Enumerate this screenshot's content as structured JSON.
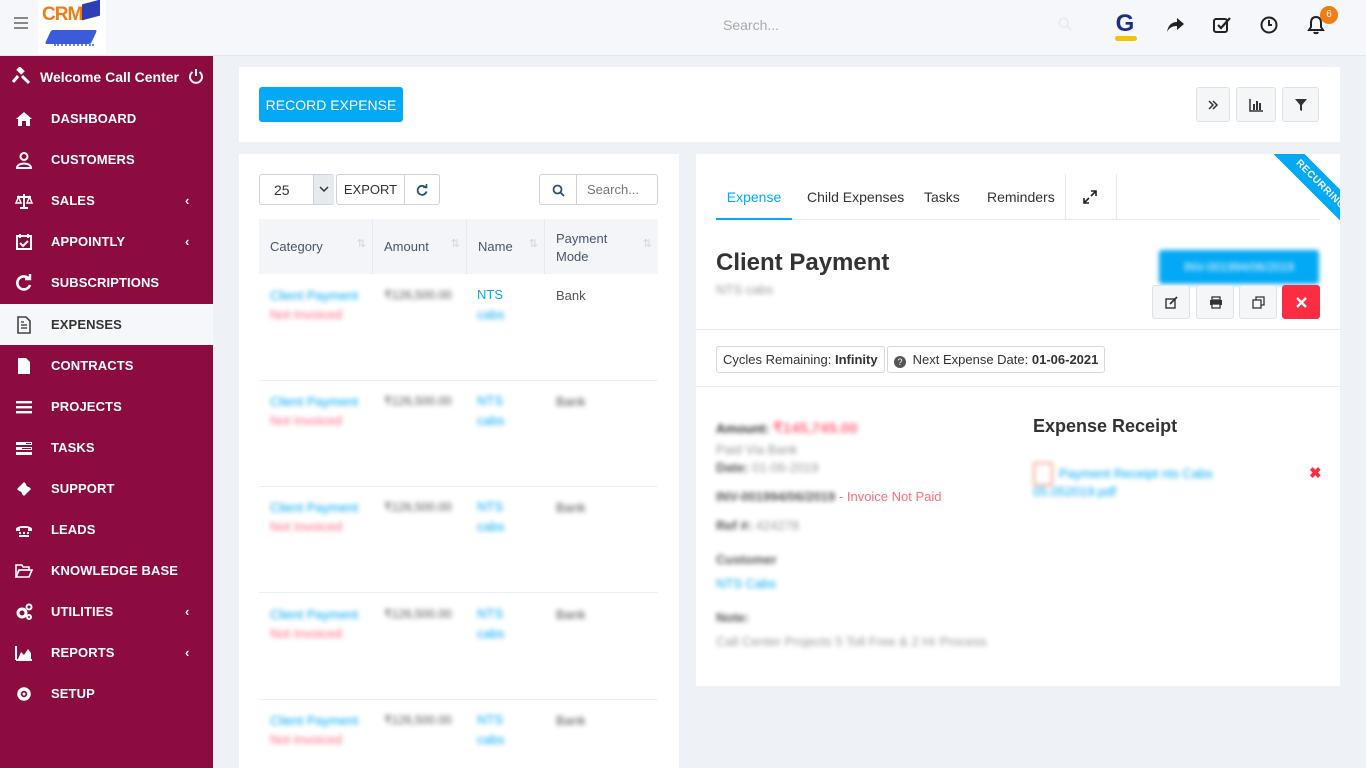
{
  "topbar": {
    "logo_text": "CRM",
    "search_placeholder": "Search...",
    "avatar_letter": "G",
    "notification_count": "6"
  },
  "sidebar": {
    "welcome": "Welcome Call Center",
    "items": [
      {
        "label": "DASHBOARD",
        "icon": "home-icon",
        "has_submenu": false
      },
      {
        "label": "CUSTOMERS",
        "icon": "user-icon",
        "has_submenu": false
      },
      {
        "label": "SALES",
        "icon": "balance-scale-icon",
        "has_submenu": true
      },
      {
        "label": "APPOINTLY",
        "icon": "calendar-check-icon",
        "has_submenu": true
      },
      {
        "label": "SUBSCRIPTIONS",
        "icon": "refresh-icon",
        "has_submenu": false
      },
      {
        "label": "EXPENSES",
        "icon": "file-text-icon",
        "has_submenu": false,
        "active": true
      },
      {
        "label": "CONTRACTS",
        "icon": "file-icon",
        "has_submenu": false
      },
      {
        "label": "PROJECTS",
        "icon": "bars-icon",
        "has_submenu": false
      },
      {
        "label": "TASKS",
        "icon": "tasks-icon",
        "has_submenu": false
      },
      {
        "label": "SUPPORT",
        "icon": "ticket-icon",
        "has_submenu": false
      },
      {
        "label": "LEADS",
        "icon": "tty-icon",
        "has_submenu": false
      },
      {
        "label": "KNOWLEDGE BASE",
        "icon": "folder-open-icon",
        "has_submenu": false
      },
      {
        "label": "UTILITIES",
        "icon": "cogs-icon",
        "has_submenu": true
      },
      {
        "label": "REPORTS",
        "icon": "area-chart-icon",
        "has_submenu": true
      },
      {
        "label": "SETUP",
        "icon": "cog-icon",
        "has_submenu": false
      }
    ],
    "chevron": "‹"
  },
  "actions": {
    "record_expense": "RECORD EXPENSE"
  },
  "list": {
    "page_length": "25",
    "export_label": "EXPORT",
    "search_placeholder": "Search...",
    "columns": [
      "Category",
      "Amount",
      "Name",
      "Payment Mode"
    ],
    "rows": [
      {
        "category": "Client Payment",
        "status": "Not Invoiced",
        "amount": "₹126,500.00",
        "name_line1": "NTS",
        "name_line2": "cabs",
        "mode": "Bank"
      },
      {
        "category": "Client Payment",
        "status": "Not Invoiced",
        "amount": "₹126,500.00",
        "name_line1": "NTS",
        "name_line2": "cabs",
        "mode": "Bank"
      },
      {
        "category": "Client Payment",
        "status": "Not Invoiced",
        "amount": "₹126,500.00",
        "name_line1": "NTS",
        "name_line2": "cabs",
        "mode": "Bank"
      },
      {
        "category": "Client Payment",
        "status": "Not Invoiced",
        "amount": "₹126,500.00",
        "name_line1": "NTS",
        "name_line2": "cabs",
        "mode": "Bank"
      },
      {
        "category": "Client Payment",
        "status": "Not Invoiced",
        "amount": "₹126,500.00",
        "name_line1": "NTS",
        "name_line2": "cabs",
        "mode": "Bank"
      }
    ]
  },
  "detail": {
    "ribbon": "RECURRING",
    "tabs": [
      "Expense",
      "Child Expenses",
      "Tasks",
      "Reminders"
    ],
    "title": "Client Payment",
    "subtitle": "NTS cabs",
    "invoice_button": "INV-001994/06/2019",
    "cycles_label": "Cycles Remaining:",
    "cycles_value": "Infinity",
    "next_date_label": "Next Expense Date:",
    "next_date_value": "01-06-2021",
    "amount_label": "Amount:",
    "amount_value": "₹145,745.00",
    "paid_via": "Paid Via Bank",
    "date_label": "Date:",
    "date_value": "01-06-2019",
    "invoice_ref": "INV-001994/06/2019",
    "invoice_status": "- Invoice Not Paid",
    "ref_label": "Ref #:",
    "ref_value": "424278",
    "customer_label": "Customer",
    "customer_value": "NTS Cabs",
    "note_label": "Note:",
    "note_value": "Call Center Projects 5 Toll Free & 2 Hr Process",
    "receipt_title": "Expense Receipt",
    "receipt_file_line1": "Payment Receipt nts Cabs",
    "receipt_file_line2": "05.052019.pdf"
  },
  "colors": {
    "sidebar_bg": "#8c0c3f",
    "accent": "#03a9f4",
    "danger": "#fc2d42",
    "badge": "#f07d14"
  }
}
